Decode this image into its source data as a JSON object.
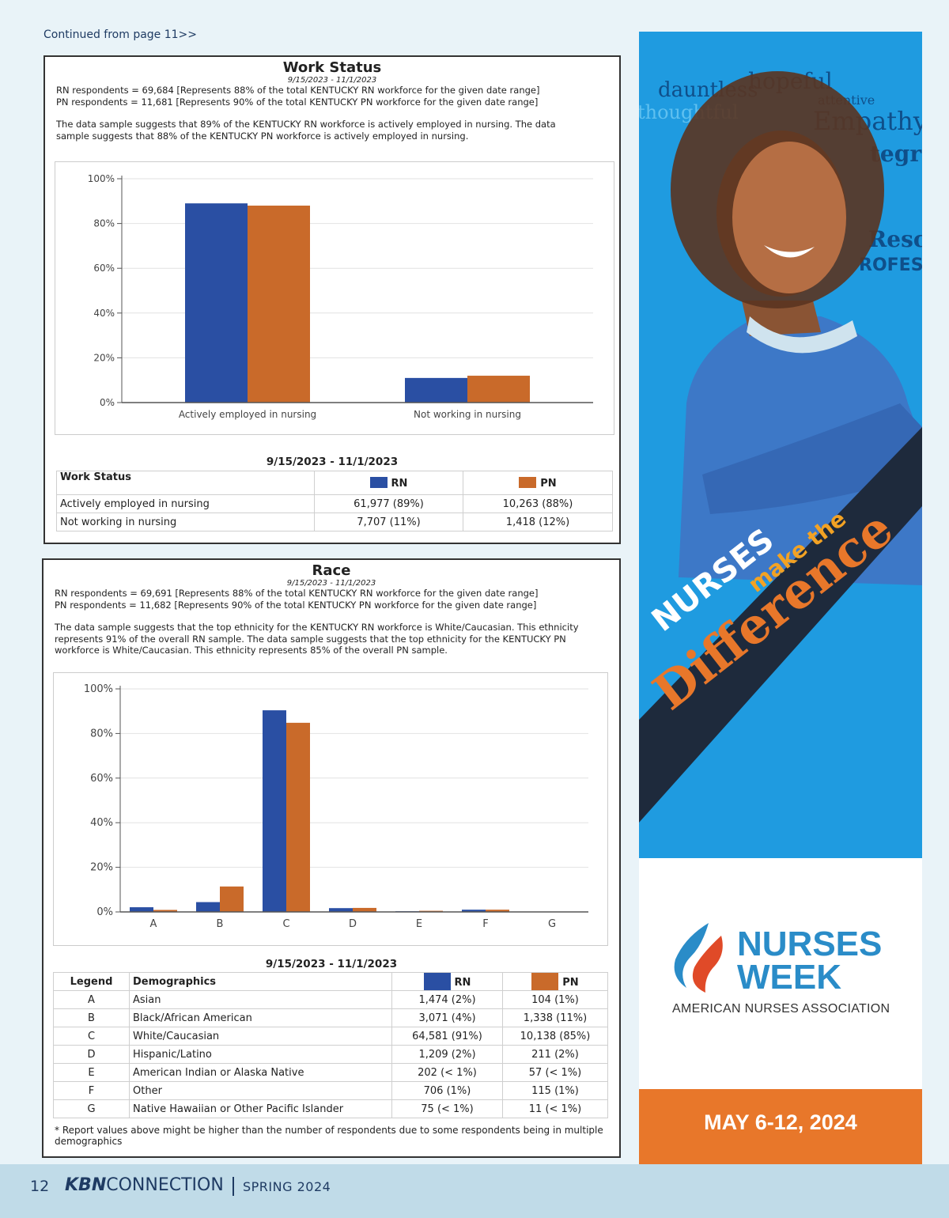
{
  "continued": "Continued from page 11>>",
  "colors": {
    "rn": "#2a4fa3",
    "pn": "#c96a2a",
    "ad_blue": "#1f9be0",
    "ad_orange": "#e8772a",
    "logo_blue": "#2a8cc8"
  },
  "work_status": {
    "title": "Work Status",
    "date": "9/15/2023 - 11/1/2023",
    "rn_line": "RN respondents = 69,684 [Represents 88% of the total KENTUCKY RN workforce for the given date range]",
    "pn_line": "PN respondents = 11,681 [Represents 90% of the total KENTUCKY PN workforce for the given date range]",
    "summary1": "The data sample suggests that 89% of the KENTUCKY RN workforce is actively employed in nursing. The data",
    "summary2": "sample suggests that 88% of the KENTUCKY PN workforce is actively employed in nursing.",
    "table_date": "9/15/2023 - 11/1/2023",
    "table": {
      "head": [
        "Work Status",
        "RN",
        "PN"
      ],
      "rows": [
        [
          "Actively employed in nursing",
          "61,977 (89%)",
          "10,263 (88%)"
        ],
        [
          "Not working in nursing",
          "7,707 (11%)",
          "1,418 (12%)"
        ]
      ]
    }
  },
  "race": {
    "title": "Race",
    "date": "9/15/2023 - 11/1/2023",
    "rn_line": "RN respondents = 69,691 [Represents 88% of the total KENTUCKY RN workforce for the given date range]",
    "pn_line": "PN respondents = 11,682 [Represents 90% of the total KENTUCKY PN workforce for the given date range]",
    "summary1": "The data sample suggests that the top ethnicity for the KENTUCKY RN workforce is White/Caucasian. This ethnicity",
    "summary2": "represents 91% of the overall RN sample. The data sample suggests that the top ethnicity for the KENTUCKY PN",
    "summary3": "workforce is White/Caucasian. This ethnicity represents 85% of the overall PN sample.",
    "table_date": "9/15/2023 - 11/1/2023",
    "table": {
      "head": [
        "Legend",
        "Demographics",
        "RN",
        "PN"
      ],
      "rows": [
        [
          "A",
          "Asian",
          "1,474 (2%)",
          "104 (1%)"
        ],
        [
          "B",
          "Black/African American",
          "3,071 (4%)",
          "1,338 (11%)"
        ],
        [
          "C",
          "White/Caucasian",
          "64,581 (91%)",
          "10,138 (85%)"
        ],
        [
          "D",
          "Hispanic/Latino",
          "1,209 (2%)",
          "211 (2%)"
        ],
        [
          "E",
          "American Indian or Alaska Native",
          "202 (< 1%)",
          "57 (< 1%)"
        ],
        [
          "F",
          "Other",
          "706 (1%)",
          "115 (1%)"
        ],
        [
          "G",
          "Native Hawaiian or Other Pacific Islander",
          "75 (< 1%)",
          "11 (< 1%)"
        ]
      ]
    },
    "footnote": "* Report values above might be higher than the number of respondents due to some respondents being in multiple demographics"
  },
  "chart_data": [
    {
      "type": "bar",
      "categories": [
        "Actively employed in nursing",
        "Not working in nursing"
      ],
      "series": [
        {
          "name": "RN",
          "values": [
            89,
            11
          ]
        },
        {
          "name": "PN",
          "values": [
            88,
            12
          ]
        }
      ],
      "yticks": [
        "0%",
        "20%",
        "40%",
        "60%",
        "80%",
        "100%"
      ],
      "ylim": [
        0,
        100
      ],
      "grid": true
    },
    {
      "type": "bar",
      "categories": [
        "A",
        "B",
        "C",
        "D",
        "E",
        "F",
        "G"
      ],
      "series": [
        {
          "name": "RN",
          "values": [
            2.1,
            4.4,
            90.4,
            1.7,
            0.3,
            1.0,
            0.1
          ]
        },
        {
          "name": "PN",
          "values": [
            0.9,
            11.4,
            84.8,
            1.8,
            0.5,
            1.0,
            0.1
          ]
        }
      ],
      "yticks": [
        "0%",
        "20%",
        "40%",
        "60%",
        "80%",
        "100%"
      ],
      "ylim": [
        0,
        100
      ],
      "grid": true
    }
  ],
  "ad": {
    "words": [
      "dauntless",
      "hopeful",
      "attentive",
      "Empathy",
      "thoughtful",
      "tegrit",
      "Resc",
      "ROFESSI"
    ],
    "nurses": "NURSES",
    "make_the": "make the",
    "difference": "Difference",
    "logo_line1": "NURSES",
    "logo_line2": "WEEK",
    "association": "AMERICAN NURSES ASSOCIATION",
    "dates": "MAY 6-12, 2024"
  },
  "footer": {
    "page": "12",
    "brand_bold": "KBN",
    "brand_rest": "CONNECTION",
    "season": "SPRING 2024"
  }
}
